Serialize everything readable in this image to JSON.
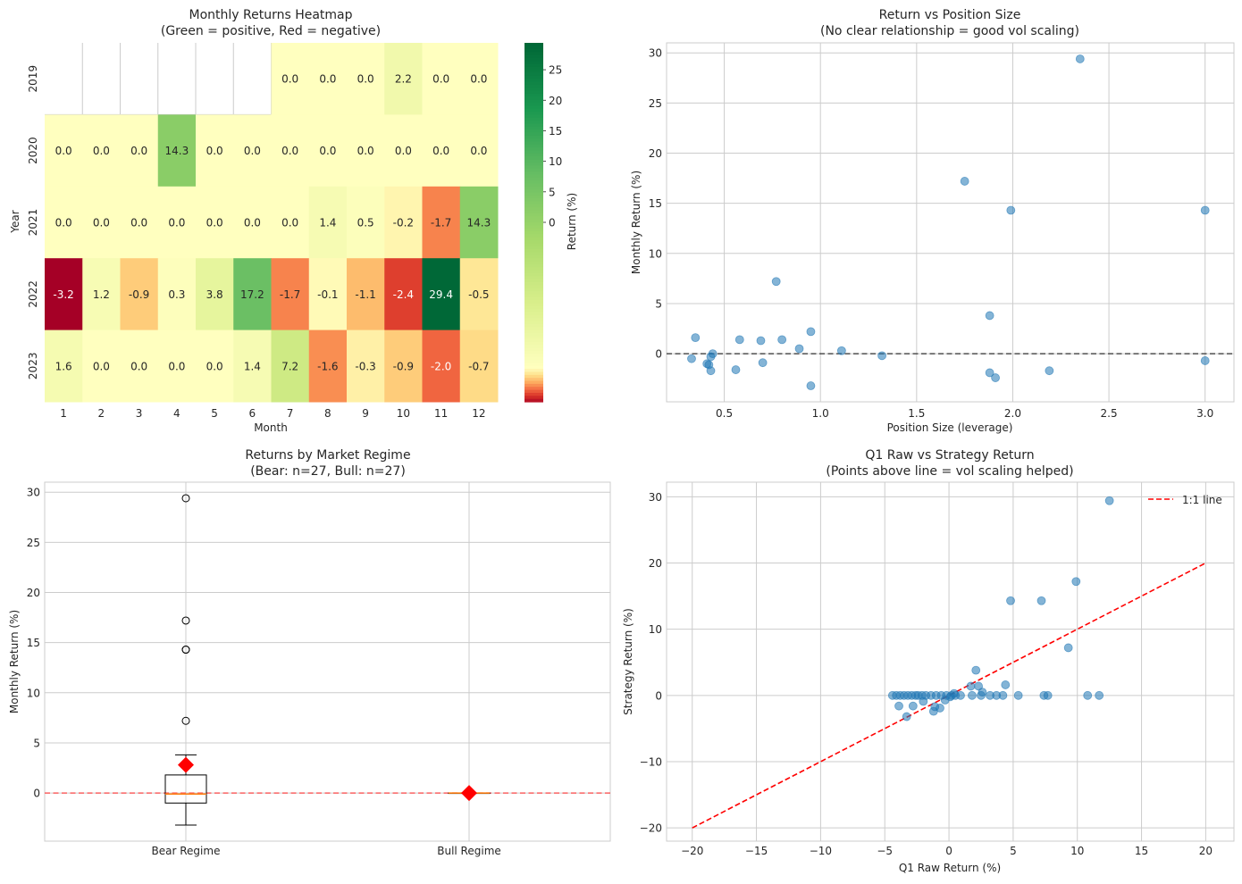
{
  "chart_data": [
    {
      "type": "heatmap",
      "title_line1": "Monthly Returns Heatmap",
      "title_line2": "(Green = positive, Red = negative)",
      "xlabel": "Month",
      "ylabel": "Year",
      "colorbar_label": "Return (%)",
      "colormap": "RdYlGn",
      "vmin": -3.2,
      "vmax": 29.4,
      "colorbar_ticks": [
        0,
        5,
        10,
        15,
        20,
        25
      ],
      "months": [
        "1",
        "2",
        "3",
        "4",
        "5",
        "6",
        "7",
        "8",
        "9",
        "10",
        "11",
        "12"
      ],
      "years": [
        "2019",
        "2020",
        "2021",
        "2022",
        "2023"
      ],
      "values": [
        [
          null,
          null,
          null,
          null,
          null,
          null,
          0.0,
          0.0,
          0.0,
          2.2,
          0.0,
          0.0
        ],
        [
          0.0,
          0.0,
          0.0,
          14.3,
          0.0,
          0.0,
          0.0,
          0.0,
          0.0,
          0.0,
          0.0,
          0.0
        ],
        [
          0.0,
          0.0,
          0.0,
          0.0,
          0.0,
          0.0,
          0.0,
          1.4,
          0.5,
          -0.2,
          -1.7,
          14.3
        ],
        [
          -3.2,
          1.2,
          -0.9,
          0.3,
          3.8,
          17.2,
          -1.7,
          -0.1,
          -1.1,
          -2.4,
          29.4,
          -0.5
        ],
        [
          1.6,
          0.0,
          0.0,
          0.0,
          0.0,
          1.4,
          7.2,
          -1.6,
          -0.3,
          -0.9,
          -2.0,
          -0.7
        ]
      ]
    },
    {
      "type": "scatter",
      "title_line1": "Return vs Position Size",
      "title_line2": "(No clear relationship = good vol scaling)",
      "xlabel": "Position Size (leverage)",
      "ylabel": "Monthly Return (%)",
      "xlim": [
        0.2,
        3.15
      ],
      "ylim": [
        -4.8,
        31.0
      ],
      "xticks": [
        0.5,
        1.0,
        1.5,
        2.0,
        2.5,
        3.0
      ],
      "yticks": [
        0,
        5,
        10,
        15,
        20,
        25,
        30
      ],
      "hline": 0,
      "x": [
        0.35,
        0.33,
        0.41,
        0.42,
        0.43,
        0.43,
        0.44,
        0.56,
        0.58,
        0.69,
        0.7,
        0.77,
        0.8,
        0.89,
        0.95,
        0.95,
        1.11,
        1.32,
        1.75,
        1.88,
        1.88,
        1.91,
        1.99,
        2.19,
        2.35,
        3.0,
        3.0
      ],
      "y": [
        1.6,
        -0.5,
        -1.0,
        -1.1,
        -1.7,
        -0.3,
        0.0,
        -1.6,
        1.4,
        1.3,
        -0.9,
        7.2,
        1.4,
        0.5,
        2.2,
        -3.2,
        0.3,
        -0.2,
        17.2,
        3.8,
        -1.9,
        -2.4,
        14.3,
        -1.7,
        29.4,
        14.3,
        -0.7
      ]
    },
    {
      "type": "box",
      "title_line1": "Returns by Market Regime",
      "title_line2": "(Bear: n=27, Bull: n=27)",
      "ylabel": "Monthly Return (%)",
      "ylim": [
        -4.8,
        31.0
      ],
      "yticks": [
        0,
        5,
        10,
        15,
        20,
        25,
        30
      ],
      "hline": 0,
      "groups": [
        {
          "name": "Bear Regime",
          "q1": -1.0,
          "median": -0.1,
          "q3": 1.8,
          "whisker_low": -3.2,
          "whisker_high": 3.8,
          "mean": 2.8,
          "outliers": [
            29.4,
            17.2,
            14.3,
            14.3,
            7.2
          ]
        },
        {
          "name": "Bull Regime",
          "q1": 0.0,
          "median": 0.0,
          "q3": 0.0,
          "whisker_low": 0.0,
          "whisker_high": 0.0,
          "mean": 0.0,
          "outliers": []
        }
      ]
    },
    {
      "type": "scatter",
      "title_line1": "Q1 Raw vs Strategy Return",
      "title_line2": "(Points above line = vol scaling helped)",
      "xlabel": "Q1 Raw Return (%)",
      "ylabel": "Strategy Return (%)",
      "xlim": [
        -22,
        22.2
      ],
      "ylim": [
        -22,
        32.2
      ],
      "xticks": [
        -20,
        -15,
        -10,
        -5,
        0,
        5,
        10,
        15,
        20
      ],
      "yticks": [
        -20,
        -10,
        0,
        10,
        20,
        30
      ],
      "reference_line": {
        "from": [
          -20,
          -20
        ],
        "to": [
          20,
          20
        ],
        "label": "1:1 line",
        "color": "#ff0000"
      },
      "x": [
        -4.4,
        -4.1,
        -3.8,
        -3.5,
        -3.2,
        -2.9,
        -2.6,
        -2.4,
        -2.1,
        -1.8,
        -1.4,
        -1.0,
        -0.6,
        -0.2,
        0.2,
        0.5,
        0.9,
        1.8,
        2.5,
        3.2,
        3.7,
        4.2,
        5.4,
        7.4,
        7.7,
        10.8,
        11.7,
        -3.9,
        -3.3,
        -2.8,
        -2.0,
        -1.2,
        -1.1,
        -0.7,
        -0.3,
        0.1,
        0.4,
        1.7,
        2.1,
        2.3,
        2.6,
        4.4,
        4.8,
        7.2,
        9.9,
        9.3,
        12.5
      ],
      "y": [
        0,
        0,
        0,
        0,
        0,
        0,
        0,
        0,
        0,
        0,
        0,
        0,
        0,
        0,
        0,
        0,
        0,
        0,
        0,
        0,
        0,
        0,
        0,
        0,
        0,
        0,
        0,
        -1.6,
        -3.2,
        -1.6,
        -0.9,
        -2.4,
        -1.7,
        -1.9,
        -0.7,
        -0.2,
        0.3,
        1.4,
        3.8,
        1.4,
        0.5,
        1.6,
        14.3,
        14.3,
        17.2,
        7.2,
        29.4
      ]
    }
  ]
}
